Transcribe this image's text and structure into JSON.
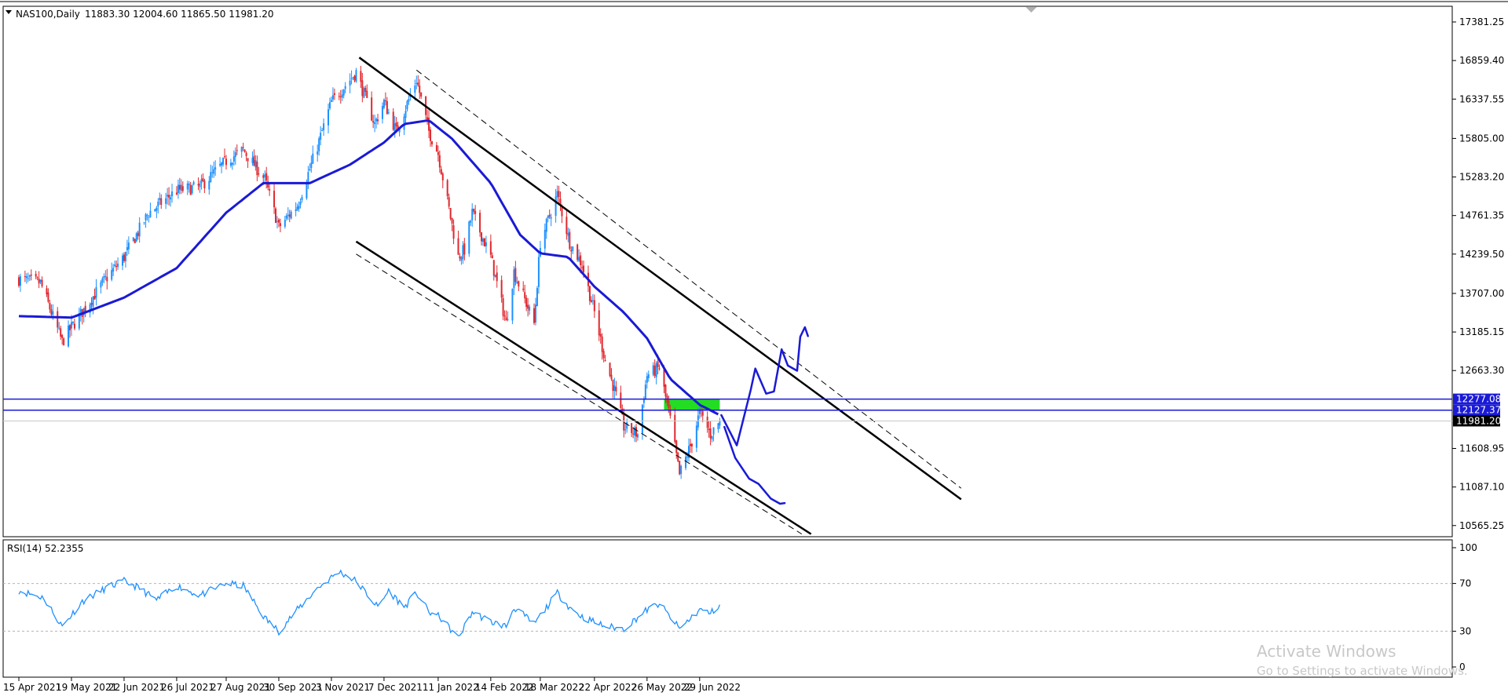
{
  "header": {
    "symbol_label": "NAS100,Daily",
    "ohlc": "11883.30 12004.60 11865.50 11981.20",
    "rsi_label": "RSI(14) 52.2355"
  },
  "watermark": {
    "line1": "Activate Windows",
    "line2": "Go to Settings to activate Windows."
  },
  "colors": {
    "bull": "#1e90ff",
    "bear": "#e0282e",
    "ma": "#1a1ad6",
    "trendline": "#000000",
    "hline": "#1a1ad6",
    "zone": "#22dd22",
    "rsi": "#1e90ff",
    "drawing": "#1a1ad6",
    "last_price_tag": "#000000"
  },
  "chart_data": [
    {
      "type": "candlestick",
      "title": "NAS100,Daily",
      "y_tick_labels": [
        "17381.25",
        "16859.40",
        "16337.55",
        "15805.00",
        "15283.20",
        "14761.35",
        "14239.50",
        "13707.00",
        "13185.15",
        "12663.30",
        "11608.95",
        "11087.10",
        "10565.25"
      ],
      "x_tick_labels": [
        "15 Apr 2021",
        "19 May 2021",
        "22 Jun 2021",
        "26 Jul 2021",
        "27 Aug 2021",
        "30 Sep 2021",
        "3 Nov 2021",
        "7 Dec 2021",
        "11 Jan 2022",
        "14 Feb 2022",
        "18 Mar 2022",
        "22 Apr 2022",
        "26 May 2022",
        "29 Jun 2022"
      ],
      "ylim": [
        10450,
        17480
      ],
      "grid": false,
      "price_anchor_points": [
        {
          "date": "2021-04-15",
          "close": 13900
        },
        {
          "date": "2021-04-29",
          "close": 13850
        },
        {
          "date": "2021-05-13",
          "close": 13050
        },
        {
          "date": "2021-05-19",
          "close": 13250
        },
        {
          "date": "2021-06-10",
          "close": 13900
        },
        {
          "date": "2021-06-22",
          "close": 14200
        },
        {
          "date": "2021-07-08",
          "close": 14800
        },
        {
          "date": "2021-07-26",
          "close": 15100
        },
        {
          "date": "2021-08-10",
          "close": 15150
        },
        {
          "date": "2021-08-27",
          "close": 15500
        },
        {
          "date": "2021-09-07",
          "close": 15650
        },
        {
          "date": "2021-09-21",
          "close": 15250
        },
        {
          "date": "2021-09-30",
          "close": 14600
        },
        {
          "date": "2021-10-12",
          "close": 14900
        },
        {
          "date": "2021-10-25",
          "close": 15700
        },
        {
          "date": "2021-11-03",
          "close": 16300
        },
        {
          "date": "2021-11-19",
          "close": 16700
        },
        {
          "date": "2021-12-01",
          "close": 16000
        },
        {
          "date": "2021-12-07",
          "close": 16300
        },
        {
          "date": "2021-12-15",
          "close": 15900
        },
        {
          "date": "2021-12-28",
          "close": 16600
        },
        {
          "date": "2022-01-05",
          "close": 15900
        },
        {
          "date": "2022-01-11",
          "close": 15600
        },
        {
          "date": "2022-01-24",
          "close": 14200
        },
        {
          "date": "2022-01-28",
          "close": 14300
        },
        {
          "date": "2022-02-02",
          "close": 14800
        },
        {
          "date": "2022-02-14",
          "close": 14200
        },
        {
          "date": "2022-02-24",
          "close": 13300
        },
        {
          "date": "2022-03-01",
          "close": 14000
        },
        {
          "date": "2022-03-14",
          "close": 13300
        },
        {
          "date": "2022-03-18",
          "close": 14400
        },
        {
          "date": "2022-03-29",
          "close": 15050
        },
        {
          "date": "2022-04-06",
          "close": 14400
        },
        {
          "date": "2022-04-14",
          "close": 14100
        },
        {
          "date": "2022-04-22",
          "close": 13450
        },
        {
          "date": "2022-04-29",
          "close": 12800
        },
        {
          "date": "2022-05-05",
          "close": 12400
        },
        {
          "date": "2022-05-11",
          "close": 11900
        },
        {
          "date": "2022-05-20",
          "close": 11800
        },
        {
          "date": "2022-05-26",
          "close": 12600
        },
        {
          "date": "2022-06-03",
          "close": 12700
        },
        {
          "date": "2022-06-10",
          "close": 12000
        },
        {
          "date": "2022-06-16",
          "close": 11250
        },
        {
          "date": "2022-06-24",
          "close": 11700
        },
        {
          "date": "2022-06-29",
          "close": 12100
        },
        {
          "date": "2022-07-06",
          "close": 11800
        },
        {
          "date": "2022-07-12",
          "close": 11981.2
        }
      ],
      "moving_average": [
        {
          "date": "2021-04-15",
          "value": 13400
        },
        {
          "date": "2021-05-19",
          "value": 13380
        },
        {
          "date": "2021-06-22",
          "value": 13650
        },
        {
          "date": "2021-07-26",
          "value": 14050
        },
        {
          "date": "2021-08-27",
          "value": 14800
        },
        {
          "date": "2021-09-20",
          "value": 15200
        },
        {
          "date": "2021-10-20",
          "value": 15200
        },
        {
          "date": "2021-11-15",
          "value": 15450
        },
        {
          "date": "2021-12-07",
          "value": 15750
        },
        {
          "date": "2021-12-20",
          "value": 16000
        },
        {
          "date": "2022-01-05",
          "value": 16050
        },
        {
          "date": "2022-01-20",
          "value": 15800
        },
        {
          "date": "2022-02-14",
          "value": 15200
        },
        {
          "date": "2022-03-05",
          "value": 14500
        },
        {
          "date": "2022-03-18",
          "value": 14250
        },
        {
          "date": "2022-04-05",
          "value": 14200
        },
        {
          "date": "2022-04-22",
          "value": 13800
        },
        {
          "date": "2022-05-11",
          "value": 13450
        },
        {
          "date": "2022-05-26",
          "value": 13100
        },
        {
          "date": "2022-06-10",
          "value": 12550
        },
        {
          "date": "2022-06-29",
          "value": 12200
        },
        {
          "date": "2022-07-12",
          "value": 12060
        }
      ],
      "horizontal_levels": [
        {
          "label": "12277.08",
          "value": 12277.08
        },
        {
          "label": "12127.37",
          "value": 12127.37
        }
      ],
      "last_price": {
        "label": "11981.20",
        "value": 11981.2
      },
      "channel_trendlines": [
        {
          "style": "solid",
          "from": {
            "date": "2021-11-21",
            "price": 16900
          },
          "to": {
            "date": "2022-12-15",
            "price": 10920
          }
        },
        {
          "style": "dashed",
          "from": {
            "date": "2021-12-28",
            "price": 16730
          },
          "to": {
            "date": "2022-12-15",
            "price": 11070
          }
        },
        {
          "style": "solid",
          "from": {
            "date": "2021-11-19",
            "price": 14410
          },
          "to": {
            "date": "2022-09-09",
            "price": 10450
          }
        },
        {
          "style": "dashed",
          "from": {
            "date": "2021-11-19",
            "price": 14240
          },
          "to": {
            "date": "2022-09-03",
            "price": 10450
          }
        }
      ],
      "resistance_zone": {
        "from_date": "2022-06-06",
        "to_date": "2022-07-12",
        "low": 12127.37,
        "high": 12277.08
      },
      "projection_paths": [
        {
          "scenario": "up",
          "points": [
            {
              "date": "2022-07-13",
              "price": 12060
            },
            {
              "date": "2022-07-23",
              "price": 11650
            },
            {
              "date": "2022-08-01",
              "price": 12400
            },
            {
              "date": "2022-08-04",
              "price": 12690
            },
            {
              "date": "2022-08-11",
              "price": 12350
            },
            {
              "date": "2022-08-16",
              "price": 12380
            },
            {
              "date": "2022-08-21",
              "price": 12950
            },
            {
              "date": "2022-08-25",
              "price": 12730
            },
            {
              "date": "2022-08-31",
              "price": 12660
            },
            {
              "date": "2022-09-02",
              "price": 13120
            },
            {
              "date": "2022-09-05",
              "price": 13250
            },
            {
              "date": "2022-09-07",
              "price": 13130
            }
          ]
        },
        {
          "scenario": "down",
          "points": [
            {
              "date": "2022-07-15",
              "price": 11900
            },
            {
              "date": "2022-07-22",
              "price": 11480
            },
            {
              "date": "2022-07-31",
              "price": 11200
            },
            {
              "date": "2022-08-06",
              "price": 11130
            },
            {
              "date": "2022-08-14",
              "price": 10930
            },
            {
              "date": "2022-08-20",
              "price": 10860
            },
            {
              "date": "2022-08-23",
              "price": 10870
            }
          ]
        }
      ]
    },
    {
      "type": "line",
      "title": "RSI(14) 52.2355",
      "series": [
        {
          "name": "RSI(14)",
          "current": 52.2355
        }
      ],
      "ylim": [
        0,
        100
      ],
      "y_tick_labels": [
        "100",
        "70",
        "30",
        "0"
      ],
      "levels": [
        70,
        30
      ],
      "x_tick_labels": [
        "15 Apr 2021",
        "19 May 2021",
        "22 Jun 2021",
        "26 Jul 2021",
        "27 Aug 2021",
        "30 Sep 2021",
        "3 Nov 2021",
        "7 Dec 2021",
        "11 Jan 2022",
        "14 Feb 2022",
        "18 Mar 2022",
        "22 Apr 2022",
        "26 May 2022",
        "29 Jun 2022"
      ],
      "anchor_points": [
        {
          "date": "2021-04-15",
          "value": 64
        },
        {
          "date": "2021-05-01",
          "value": 58
        },
        {
          "date": "2021-05-13",
          "value": 34
        },
        {
          "date": "2021-05-26",
          "value": 55
        },
        {
          "date": "2021-06-10",
          "value": 66
        },
        {
          "date": "2021-06-22",
          "value": 72
        },
        {
          "date": "2021-07-02",
          "value": 66
        },
        {
          "date": "2021-07-13",
          "value": 56
        },
        {
          "date": "2021-07-26",
          "value": 68
        },
        {
          "date": "2021-08-10",
          "value": 60
        },
        {
          "date": "2021-08-27",
          "value": 70
        },
        {
          "date": "2021-09-07",
          "value": 68
        },
        {
          "date": "2021-09-21",
          "value": 41
        },
        {
          "date": "2021-09-30",
          "value": 30
        },
        {
          "date": "2021-10-12",
          "value": 48
        },
        {
          "date": "2021-10-25",
          "value": 66
        },
        {
          "date": "2021-11-08",
          "value": 80
        },
        {
          "date": "2021-11-19",
          "value": 72
        },
        {
          "date": "2021-12-03",
          "value": 50
        },
        {
          "date": "2021-12-10",
          "value": 64
        },
        {
          "date": "2021-12-20",
          "value": 50
        },
        {
          "date": "2021-12-28",
          "value": 62
        },
        {
          "date": "2022-01-05",
          "value": 46
        },
        {
          "date": "2022-01-12",
          "value": 42
        },
        {
          "date": "2022-01-24",
          "value": 24
        },
        {
          "date": "2022-02-02",
          "value": 46
        },
        {
          "date": "2022-02-14",
          "value": 38
        },
        {
          "date": "2022-02-24",
          "value": 34
        },
        {
          "date": "2022-03-01",
          "value": 50
        },
        {
          "date": "2022-03-14",
          "value": 36
        },
        {
          "date": "2022-03-29",
          "value": 62
        },
        {
          "date": "2022-04-06",
          "value": 50
        },
        {
          "date": "2022-04-14",
          "value": 42
        },
        {
          "date": "2022-04-29",
          "value": 34
        },
        {
          "date": "2022-05-11",
          "value": 32
        },
        {
          "date": "2022-05-26",
          "value": 48
        },
        {
          "date": "2022-06-03",
          "value": 53
        },
        {
          "date": "2022-06-16",
          "value": 32
        },
        {
          "date": "2022-06-29",
          "value": 48
        },
        {
          "date": "2022-07-06",
          "value": 45
        },
        {
          "date": "2022-07-12",
          "value": 52.2355
        }
      ]
    }
  ]
}
